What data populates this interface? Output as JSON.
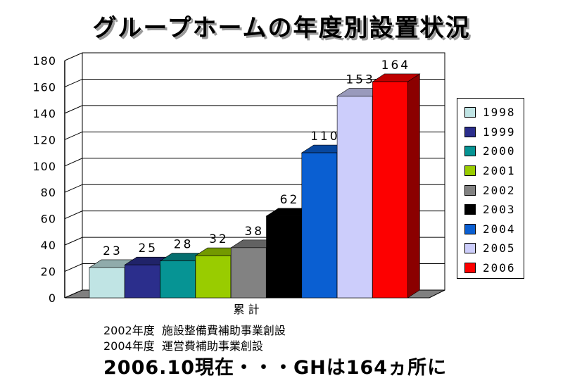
{
  "title": "グループホームの年度別設置状況",
  "chart_data": {
    "type": "bar",
    "categories": [
      "累 計"
    ],
    "series": [
      {
        "name": "1998",
        "values": [
          23
        ],
        "color": "#c0e4e4"
      },
      {
        "name": "1999",
        "values": [
          25
        ],
        "color": "#2b2e8c"
      },
      {
        "name": "2000",
        "values": [
          28
        ],
        "color": "#069494"
      },
      {
        "name": "2001",
        "values": [
          32
        ],
        "color": "#99cc00"
      },
      {
        "name": "2002",
        "values": [
          38
        ],
        "color": "#828282"
      },
      {
        "name": "2003",
        "values": [
          62
        ],
        "color": "#000000"
      },
      {
        "name": "2004",
        "values": [
          110
        ],
        "color": "#0a5fd2"
      },
      {
        "name": "2005",
        "values": [
          153
        ],
        "color": "#cccdfb"
      },
      {
        "name": "2006",
        "values": [
          164
        ],
        "color": "#fd0000"
      }
    ],
    "ylim": [
      0,
      180
    ],
    "yticks": [
      "0",
      "20",
      "40",
      "60",
      "80",
      "100",
      "120",
      "140",
      "160",
      "180"
    ],
    "grid": true,
    "legend_position": "right",
    "xlabel": "累 計",
    "ylabel": ""
  },
  "notes": [
    "2002年度  施設整備費補助事業創設",
    "2004年度  運営費補助事業創設"
  ],
  "summary": "2006.10現在・・・GHは164ヵ所に"
}
